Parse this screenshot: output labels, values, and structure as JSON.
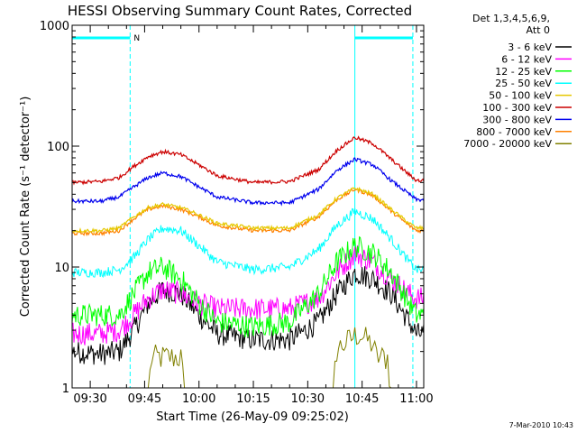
{
  "chart_data": {
    "type": "line",
    "title": "HESSI Observing Summary Count Rates, Corrected",
    "xlabel": "Start Time (26-May-09 09:25:02)",
    "ylabel": "Corrected Count Rate (s⁻¹ detector⁻¹)",
    "xlim": [
      "09:25",
      "11:02"
    ],
    "ylim": [
      1,
      1000
    ],
    "yscale": "log",
    "x_ticks": [
      "09:30",
      "09:45",
      "10:00",
      "10:15",
      "10:30",
      "10:45",
      "11:00"
    ],
    "y_ticks": [
      "1",
      "10",
      "100",
      "1000"
    ],
    "legend_title": [
      "Det 1,3,4,5,6,9,",
      "Att 0"
    ],
    "legend_position": "right",
    "timestamp": "7-Mar-2010 10:43",
    "night_label": "N",
    "night_bars": [
      {
        "start": "09:25",
        "end": "09:41"
      },
      {
        "start": "10:43",
        "end": "10:59"
      }
    ],
    "vertical_markers": [
      "09:25",
      "09:41",
      "10:43",
      "10:59"
    ],
    "series": [
      {
        "name": "3 - 6 keV",
        "color": "#000000",
        "x": [
          "09:25",
          "09:33",
          "09:38",
          "09:42",
          "09:46",
          "09:50",
          "09:55",
          "10:00",
          "10:05",
          "10:15",
          "10:25",
          "10:33",
          "10:38",
          "10:43",
          "10:48",
          "10:53",
          "10:58",
          "11:00"
        ],
        "y": [
          2.0,
          1.9,
          2.0,
          3.0,
          5.0,
          6.5,
          6.0,
          4.0,
          2.8,
          2.5,
          2.5,
          3.5,
          6.0,
          9.0,
          8.0,
          6.0,
          3.5,
          2.8
        ]
      },
      {
        "name": "6 - 12 keV",
        "color": "#ff00ff",
        "x": [
          "09:25",
          "09:33",
          "09:38",
          "09:42",
          "09:46",
          "09:50",
          "09:55",
          "10:00",
          "10:05",
          "10:15",
          "10:25",
          "10:33",
          "10:38",
          "10:43",
          "10:48",
          "10:53",
          "10:58",
          "11:00"
        ],
        "y": [
          2.8,
          2.8,
          3.0,
          4.0,
          5.5,
          6.5,
          6.0,
          5.0,
          4.5,
          4.5,
          4.5,
          5.5,
          9.0,
          13.0,
          11.0,
          8.0,
          6.0,
          5.5
        ]
      },
      {
        "name": "12 - 25 keV",
        "color": "#00ff00",
        "x": [
          "09:25",
          "09:33",
          "09:38",
          "09:42",
          "09:46",
          "09:50",
          "09:55",
          "10:00",
          "10:05",
          "10:15",
          "10:25",
          "10:33",
          "10:38",
          "10:43",
          "10:48",
          "10:53",
          "10:58",
          "11:00"
        ],
        "y": [
          4.0,
          4.0,
          4.0,
          6.0,
          9.0,
          10.0,
          8.0,
          5.0,
          3.5,
          3.2,
          3.5,
          6.0,
          11.0,
          15.0,
          13.0,
          9.0,
          5.0,
          4.0
        ]
      },
      {
        "name": "25 - 50 keV",
        "color": "#00ffff",
        "x": [
          "09:25",
          "09:33",
          "09:38",
          "09:42",
          "09:46",
          "09:50",
          "09:55",
          "10:00",
          "10:05",
          "10:15",
          "10:25",
          "10:33",
          "10:38",
          "10:43",
          "10:48",
          "10:53",
          "10:58",
          "11:00"
        ],
        "y": [
          9.0,
          9.0,
          9.5,
          12.0,
          17.0,
          21.0,
          20.0,
          15.0,
          11.0,
          9.5,
          10.0,
          14.0,
          22.0,
          29.0,
          25.0,
          17.0,
          11.0,
          9.5
        ]
      },
      {
        "name": "50 - 100 keV",
        "color": "#e6c800",
        "x": [
          "09:25",
          "09:33",
          "09:38",
          "09:42",
          "09:46",
          "09:50",
          "09:55",
          "10:00",
          "10:05",
          "10:15",
          "10:25",
          "10:33",
          "10:38",
          "10:43",
          "10:48",
          "10:53",
          "10:58",
          "11:00"
        ],
        "y": [
          20.0,
          20.0,
          21.0,
          26.0,
          31.0,
          33.0,
          31.0,
          27.0,
          23.0,
          21.0,
          21.0,
          27.0,
          37.0,
          45.0,
          40.0,
          30.0,
          23.0,
          21.0
        ]
      },
      {
        "name": "100 - 300 keV",
        "color": "#cc0000",
        "x": [
          "09:25",
          "09:33",
          "09:38",
          "09:42",
          "09:46",
          "09:50",
          "09:55",
          "10:00",
          "10:05",
          "10:15",
          "10:25",
          "10:33",
          "10:38",
          "10:43",
          "10:48",
          "10:53",
          "10:58",
          "11:00"
        ],
        "y": [
          50.0,
          51.0,
          55.0,
          68.0,
          82.0,
          90.0,
          85.0,
          70.0,
          57.0,
          50.0,
          51.0,
          64.0,
          92.0,
          118.0,
          105.0,
          78.0,
          58.0,
          52.0
        ]
      },
      {
        "name": "300 - 800 keV",
        "color": "#0000ee",
        "x": [
          "09:25",
          "09:33",
          "09:38",
          "09:42",
          "09:46",
          "09:50",
          "09:55",
          "10:00",
          "10:05",
          "10:15",
          "10:25",
          "10:33",
          "10:38",
          "10:43",
          "10:48",
          "10:53",
          "10:58",
          "11:00"
        ],
        "y": [
          35.0,
          35.0,
          38.0,
          46.0,
          55.0,
          60.0,
          56.0,
          46.0,
          38.0,
          34.0,
          34.0,
          44.0,
          63.0,
          78.0,
          70.0,
          52.0,
          40.0,
          36.0
        ]
      },
      {
        "name": "800 - 7000 keV",
        "color": "#ff8000",
        "x": [
          "09:25",
          "09:33",
          "09:38",
          "09:42",
          "09:46",
          "09:50",
          "09:55",
          "10:00",
          "10:05",
          "10:15",
          "10:25",
          "10:33",
          "10:38",
          "10:43",
          "10:48",
          "10:53",
          "10:58",
          "11:00"
        ],
        "y": [
          19.0,
          19.0,
          20.0,
          25.0,
          30.0,
          32.0,
          30.0,
          26.0,
          22.0,
          20.0,
          20.0,
          26.0,
          36.0,
          44.0,
          39.0,
          29.0,
          22.0,
          20.0
        ]
      },
      {
        "name": "7000 - 20000 keV",
        "color": "#808000",
        "x": [
          "09:25",
          "09:46",
          "09:47",
          "09:55",
          "09:56",
          "10:37",
          "10:38",
          "10:44",
          "10:48",
          "10:49",
          "10:52",
          "10:53",
          "11:00"
        ],
        "y": [
          1.0,
          1.0,
          1.9,
          1.9,
          1.0,
          1.0,
          2.2,
          3.0,
          2.4,
          1.9,
          1.9,
          1.0,
          1.0
        ]
      }
    ]
  },
  "colors": {
    "axis": "#000000",
    "marker": "#00ffff",
    "background": "#ffffff"
  }
}
